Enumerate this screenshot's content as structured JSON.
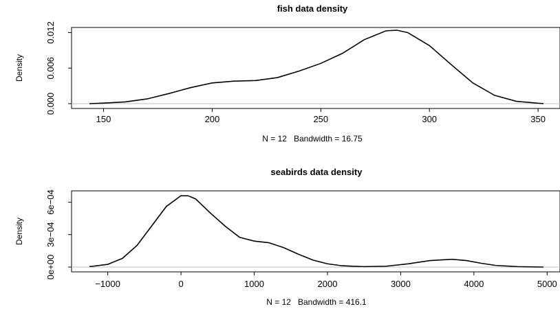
{
  "chart_data": [
    {
      "type": "line",
      "title": "fish data density",
      "xlabel": "N = 12   Bandwidth = 16.75",
      "ylabel": "Density",
      "xlim": [
        143.5,
        352.5
      ],
      "ylim": [
        0,
        0.0124
      ],
      "xticks": [
        150,
        200,
        250,
        300,
        350
      ],
      "yticks": [
        0.0,
        0.006,
        0.012
      ],
      "xtick_labels": [
        "150",
        "200",
        "250",
        "300",
        "350"
      ],
      "ytick_labels": [
        "0.000",
        "0.006",
        "0.012"
      ],
      "baseline": 0,
      "grid": false,
      "series": [
        {
          "x": [
            143.5,
            150,
            160,
            170,
            180,
            190,
            200,
            210,
            220,
            230,
            240,
            250,
            260,
            270,
            280,
            285,
            290,
            300,
            310,
            320,
            330,
            340,
            352.5
          ],
          "y": [
            0.0,
            0.0001,
            0.0003,
            0.0008,
            0.0017,
            0.0027,
            0.0035,
            0.0038,
            0.0039,
            0.0044,
            0.0055,
            0.0068,
            0.0085,
            0.0108,
            0.0123,
            0.0124,
            0.012,
            0.0098,
            0.0066,
            0.0035,
            0.0014,
            0.0004,
            0.0
          ]
        }
      ]
    },
    {
      "type": "line",
      "title": "seabirds data density",
      "xlabel": "N = 12   Bandwidth = 416.1",
      "ylabel": "Density",
      "xlim": [
        -1250,
        4950
      ],
      "ylim": [
        0,
        0.00066
      ],
      "xticks": [
        -1000,
        0,
        1000,
        2000,
        3000,
        4000,
        5000
      ],
      "yticks": [
        0,
        0.0003,
        0.0006
      ],
      "xtick_labels": [
        "−1000",
        "0",
        "1000",
        "2000",
        "3000",
        "4000",
        "5000"
      ],
      "ytick_labels": [
        "0e+00",
        "3e−04",
        "6e−04"
      ],
      "baseline": 0,
      "grid": false,
      "series": [
        {
          "x": [
            -1250,
            -1000,
            -800,
            -600,
            -400,
            -200,
            0,
            100,
            200,
            400,
            600,
            800,
            1000,
            1200,
            1400,
            1600,
            1800,
            2000,
            2200,
            2500,
            2800,
            3100,
            3400,
            3700,
            3900,
            4100,
            4300,
            4600,
            4950
          ],
          "y": [
            4e-06,
            2.5e-05,
            8e-05,
            0.0002,
            0.00038,
            0.00056,
            0.00066,
            0.000658,
            0.00063,
            0.0005,
            0.00038,
            0.000275,
            0.00024,
            0.000225,
            0.00018,
            0.00012,
            6.5e-05,
            3e-05,
            1.2e-05,
            4e-06,
            8e-06,
            3e-05,
            6e-05,
            7.2e-05,
            6e-05,
            3.5e-05,
            1.5e-05,
            4e-06,
            0.0
          ]
        }
      ]
    }
  ]
}
